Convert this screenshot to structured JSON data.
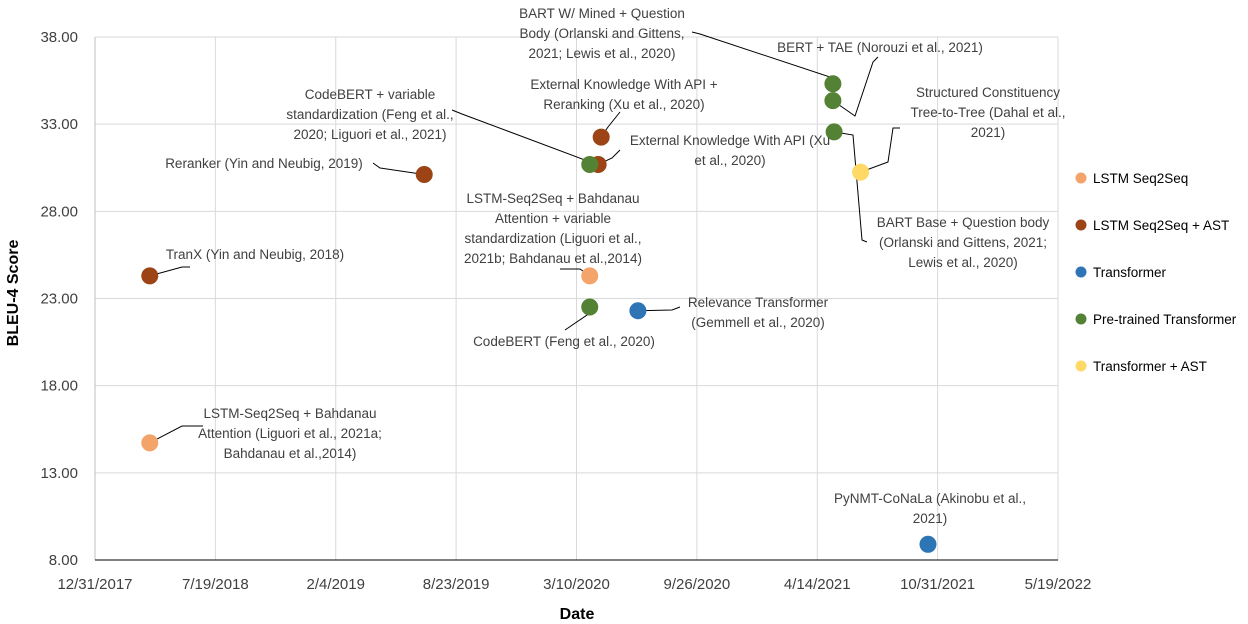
{
  "chart_data": {
    "type": "scatter",
    "title": "",
    "xlabel": "Date",
    "ylabel": "BLEU-4 Score",
    "xlim": [
      "2017-12-31",
      "2022-05-19"
    ],
    "ylim": [
      8.0,
      38.0
    ],
    "x_ticks": [
      "12/31/2017",
      "7/19/2018",
      "2/4/2019",
      "8/23/2019",
      "3/10/2020",
      "9/26/2020",
      "4/14/2021",
      "10/31/2021",
      "5/19/2022"
    ],
    "y_ticks": [
      "8.00",
      "13.00",
      "18.00",
      "23.00",
      "28.00",
      "33.00",
      "38.00"
    ],
    "grid": true,
    "legend_position": "right",
    "series": [
      {
        "name": "LSTM Seq2Seq",
        "color": "#f4a46a",
        "points": [
          {
            "date": "2018-04-01",
            "value": 14.72,
            "label": "LSTM-Seq2Seq  + Bahdanau\nAttention (Liguori et al., 2021a;\nBahdanau et al.,2014)"
          },
          {
            "date": "2020-04-01",
            "value": 24.3,
            "label": "LSTM-Seq2Seq + Bahdanau\nAttention + variable\nstandardization (Liguori et al.,\n2021b; Bahdanau et al.,2014)"
          }
        ]
      },
      {
        "name": "LSTM Seq2Seq + AST",
        "color": "#9c4416",
        "points": [
          {
            "date": "2018-04-01",
            "value": 24.3,
            "label": "TranX (Yin and Neubig, 2018)"
          },
          {
            "date": "2019-07-01",
            "value": 30.11,
            "label": "Reranker (Yin and Neubig, 2019)"
          },
          {
            "date": "2020-04-15",
            "value": 30.69,
            "label": "External Knowledge With API (Xu\net al., 2020)"
          },
          {
            "date": "2020-04-20",
            "value": 32.26,
            "label": "External Knowledge With API +\nReranking (Xu et al., 2020)"
          }
        ]
      },
      {
        "name": "Transformer",
        "color": "#2e75b6",
        "points": [
          {
            "date": "2020-06-20",
            "value": 22.3,
            "label": "Relevance Transformer\n(Gemmell et al., 2020)"
          },
          {
            "date": "2021-10-15",
            "value": 8.9,
            "label": "PyNMT-CoNaLa (Akinobu et al.,\n2021)"
          }
        ]
      },
      {
        "name": "Pre-trained Transformer",
        "color": "#548235",
        "points": [
          {
            "date": "2020-04-01",
            "value": 22.51,
            "label": "CodeBERT (Feng et al., 2020)"
          },
          {
            "date": "2020-04-01",
            "value": 30.69,
            "label": "CodeBERT + variable\nstandardization (Feng et al.,\n2020; Liguori et al., 2021)"
          },
          {
            "date": "2021-05-10",
            "value": 35.32,
            "label": "BART W/ Mined + Question\nBody (Orlanski and Gittens,\n2021; Lewis et al., 2020)"
          },
          {
            "date": "2021-05-10",
            "value": 34.35,
            "label": "BERT + TAE (Norouzi  et al., 2021)"
          },
          {
            "date": "2021-05-12",
            "value": 32.56,
            "label": "BART Base + Question body\n(Orlanski and Gittens, 2021;\nLewis et al., 2020)"
          }
        ]
      },
      {
        "name": "Transformer + AST",
        "color": "#ffd966",
        "points": [
          {
            "date": "2021-06-25",
            "value": 30.25,
            "label": "Structured  Constituency\nTree-to-Tree (Dahal et al.,\n2021)"
          }
        ]
      }
    ]
  }
}
